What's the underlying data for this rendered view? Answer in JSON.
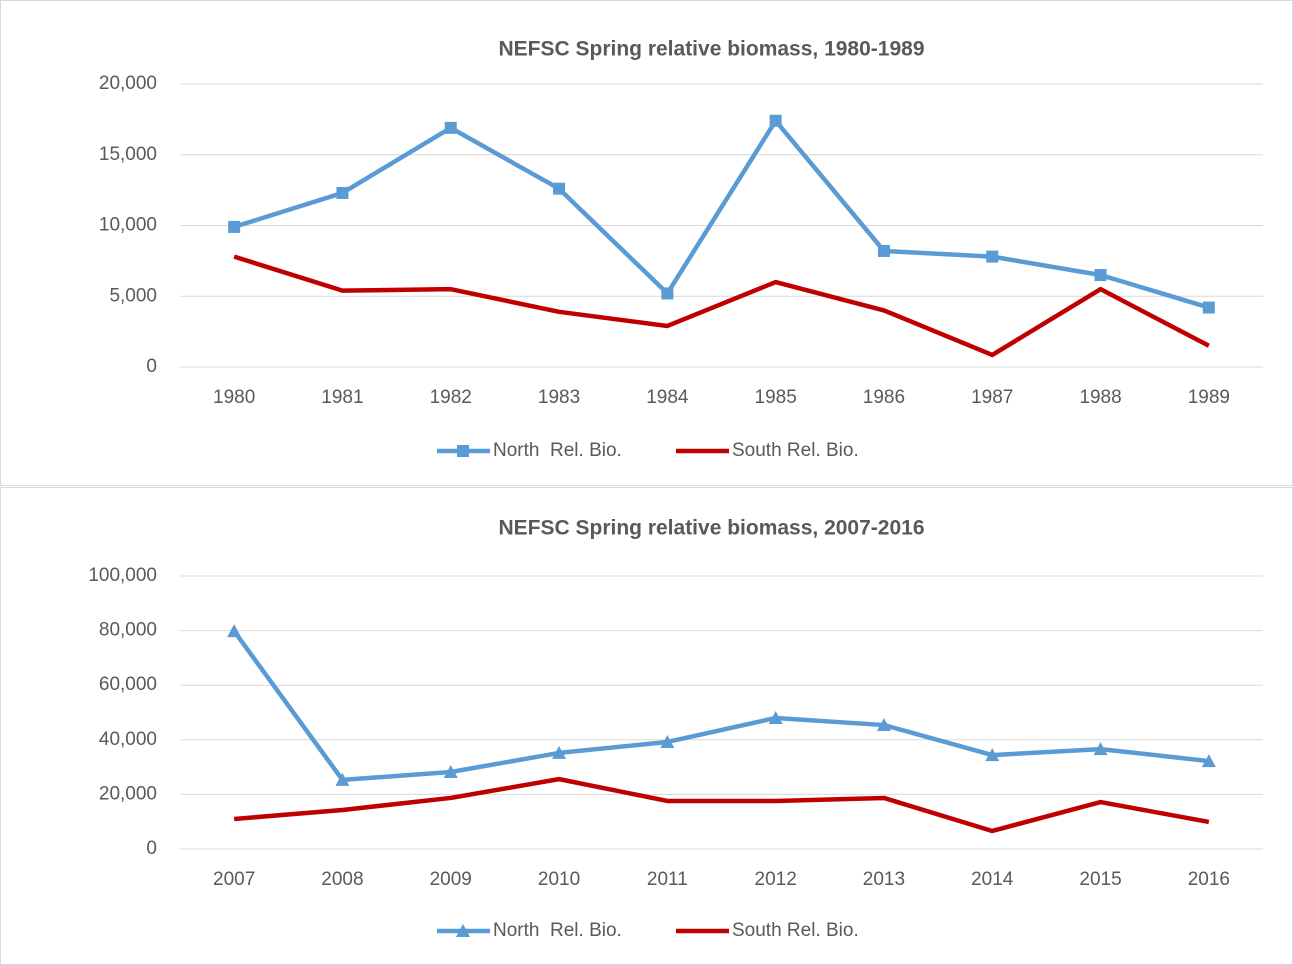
{
  "chart_data": [
    {
      "type": "line",
      "title": "NEFSC Spring relative biomass, 1980-1989",
      "categories": [
        "1980",
        "1981",
        "1982",
        "1983",
        "1984",
        "1985",
        "1986",
        "1987",
        "1988",
        "1989"
      ],
      "series": [
        {
          "name": "North  Rel. Bio.",
          "color": "#5b9bd5",
          "marker": "square",
          "values": [
            9900,
            12300,
            16900,
            12600,
            5200,
            17400,
            8200,
            7800,
            6500,
            4200
          ]
        },
        {
          "name": "South Rel. Bio.",
          "color": "#c00000",
          "values": [
            7800,
            5400,
            5500,
            3900,
            2900,
            6000,
            4000,
            850,
            5500,
            1500
          ]
        }
      ],
      "ylim": [
        0,
        20000
      ],
      "yticks": [
        0,
        {
          "value": 5000,
          "label": "5,000"
        },
        {
          "value": 10000,
          "label": "10,000"
        },
        {
          "value": 15000,
          "label": "15,000"
        },
        {
          "value": 20000,
          "label": "20,000"
        }
      ],
      "grid": true,
      "legend": "bottom"
    },
    {
      "type": "line",
      "title": "NEFSC Spring relative biomass, 2007-2016",
      "categories": [
        "2007",
        "2008",
        "2009",
        "2010",
        "2011",
        "2012",
        "2013",
        "2014",
        "2015",
        "2016"
      ],
      "series": [
        {
          "name": "North  Rel. Bio.",
          "color": "#5b9bd5",
          "marker": "triangle",
          "values": [
            79800,
            25300,
            28200,
            35200,
            39200,
            48000,
            45400,
            34400,
            36600,
            32200
          ]
        },
        {
          "name": "South Rel. Bio.",
          "color": "#c00000",
          "values": [
            11000,
            14300,
            18700,
            25600,
            17600,
            17600,
            18700,
            6600,
            17200,
            9900
          ]
        }
      ],
      "ylim": [
        0,
        100000
      ],
      "yticks": [
        0,
        {
          "value": 20000,
          "label": "20,000"
        },
        {
          "value": 40000,
          "label": "40,000"
        },
        {
          "value": 60000,
          "label": "60,000"
        },
        {
          "value": 80000,
          "label": "80,000"
        },
        {
          "value": 100000,
          "label": "100,000"
        }
      ],
      "grid": true,
      "legend": "bottom"
    }
  ]
}
